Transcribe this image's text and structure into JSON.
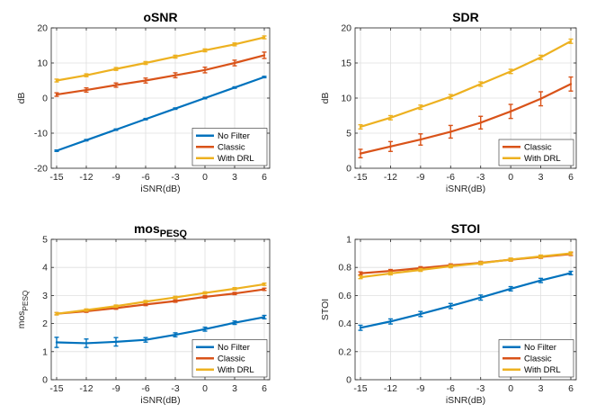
{
  "chart_data": [
    {
      "type": "line",
      "title": "oSNR",
      "title_sub": "",
      "xlabel": "iSNR(dB)",
      "ylabel": "dB",
      "ylabel_sub": "",
      "ylim": [
        -20,
        20
      ],
      "yticks": [
        "-20",
        "-10",
        "0",
        "10",
        "20"
      ],
      "ytick_values": [
        -20,
        -10,
        0,
        10,
        20
      ],
      "x": [
        -15,
        -12,
        -9,
        -6,
        -3,
        0,
        3,
        6
      ],
      "xticks": [
        "-15",
        "-12",
        "-9",
        "-6",
        "-3",
        "0",
        "3",
        "6"
      ],
      "grid": true,
      "legend_position": "bottom-right",
      "series": [
        {
          "name": "No Filter",
          "color": "#0072BD",
          "values": [
            -15,
            -12,
            -9,
            -6,
            -3,
            0,
            3,
            6
          ],
          "errors": [
            0.2,
            0.2,
            0.2,
            0.2,
            0.2,
            0.2,
            0.2,
            0.2
          ]
        },
        {
          "name": "Classic",
          "color": "#D95319",
          "values": [
            1,
            2.3,
            3.7,
            5,
            6.5,
            8,
            10,
            12.2
          ],
          "errors": [
            0.5,
            0.6,
            0.6,
            0.7,
            0.7,
            0.8,
            0.8,
            0.9
          ]
        },
        {
          "name": "With DRL",
          "color": "#EDB120",
          "values": [
            5,
            6.5,
            8.3,
            10,
            11.8,
            13.6,
            15.3,
            17.3
          ],
          "errors": [
            0.4,
            0.4,
            0.4,
            0.4,
            0.4,
            0.4,
            0.4,
            0.4
          ]
        }
      ]
    },
    {
      "type": "line",
      "title": "SDR",
      "title_sub": "",
      "xlabel": "iSNR(dB)",
      "ylabel": "dB",
      "ylabel_sub": "",
      "ylim": [
        0,
        20
      ],
      "yticks": [
        "0",
        "5",
        "10",
        "15",
        "20"
      ],
      "ytick_values": [
        0,
        5,
        10,
        15,
        20
      ],
      "x": [
        -15,
        -12,
        -9,
        -6,
        -3,
        0,
        3,
        6
      ],
      "xticks": [
        "-15",
        "-12",
        "-9",
        "-6",
        "-3",
        "0",
        "3",
        "6"
      ],
      "grid": true,
      "legend_position": "bottom-right",
      "series": [
        {
          "name": "Classic",
          "color": "#D95319",
          "values": [
            2.1,
            3.1,
            4.1,
            5.2,
            6.5,
            8.1,
            9.9,
            12
          ],
          "errors": [
            0.6,
            0.7,
            0.8,
            0.9,
            0.9,
            1,
            1,
            1
          ]
        },
        {
          "name": "With DRL",
          "color": "#EDB120",
          "values": [
            5.9,
            7.2,
            8.7,
            10.2,
            12,
            13.8,
            15.8,
            18.1
          ],
          "errors": [
            0.3,
            0.3,
            0.3,
            0.3,
            0.3,
            0.3,
            0.3,
            0.3
          ]
        }
      ]
    },
    {
      "type": "line",
      "title": "mos",
      "title_sub": "PESQ",
      "xlabel": "iSNR(dB)",
      "ylabel": "mos",
      "ylabel_sub": "PESQ",
      "ylim": [
        0,
        5
      ],
      "yticks": [
        "0",
        "1",
        "2",
        "3",
        "4",
        "5"
      ],
      "ytick_values": [
        0,
        1,
        2,
        3,
        4,
        5
      ],
      "x": [
        -15,
        -12,
        -9,
        -6,
        -3,
        0,
        3,
        6
      ],
      "xticks": [
        "-15",
        "-12",
        "-9",
        "-6",
        "-3",
        "0",
        "3",
        "6"
      ],
      "grid": true,
      "legend_position": "bottom-right",
      "series": [
        {
          "name": "No Filter",
          "color": "#0072BD",
          "values": [
            1.33,
            1.3,
            1.35,
            1.42,
            1.6,
            1.8,
            2.03,
            2.23
          ],
          "errors": [
            0.18,
            0.15,
            0.15,
            0.08,
            0.07,
            0.07,
            0.06,
            0.06
          ]
        },
        {
          "name": "Classic",
          "color": "#D95319",
          "values": [
            2.35,
            2.44,
            2.55,
            2.68,
            2.8,
            2.95,
            3.07,
            3.22
          ],
          "errors": [
            0.04,
            0.04,
            0.04,
            0.04,
            0.04,
            0.04,
            0.04,
            0.04
          ]
        },
        {
          "name": "With DRL",
          "color": "#EDB120",
          "values": [
            2.35,
            2.48,
            2.62,
            2.78,
            2.93,
            3.09,
            3.24,
            3.4
          ],
          "errors": [
            0.04,
            0.04,
            0.04,
            0.04,
            0.04,
            0.04,
            0.04,
            0.04
          ]
        }
      ]
    },
    {
      "type": "line",
      "title": "STOI",
      "title_sub": "",
      "xlabel": "iSNR(dB)",
      "ylabel": "STOI",
      "ylabel_sub": "",
      "ylim": [
        0,
        1
      ],
      "yticks": [
        "0",
        "0.2",
        "0.4",
        "0.6",
        "0.8",
        "1"
      ],
      "ytick_values": [
        0,
        0.2,
        0.4,
        0.6,
        0.8,
        1
      ],
      "x": [
        -15,
        -12,
        -9,
        -6,
        -3,
        0,
        3,
        6
      ],
      "xticks": [
        "-15",
        "-12",
        "-9",
        "-6",
        "-3",
        "0",
        "3",
        "6"
      ],
      "grid": true,
      "legend_position": "bottom-right",
      "series": [
        {
          "name": "No Filter",
          "color": "#0072BD",
          "values": [
            0.37,
            0.415,
            0.468,
            0.525,
            0.585,
            0.648,
            0.707,
            0.76
          ],
          "errors": [
            0.018,
            0.018,
            0.018,
            0.018,
            0.018,
            0.015,
            0.015,
            0.012
          ]
        },
        {
          "name": "Classic",
          "color": "#D95319",
          "values": [
            0.758,
            0.775,
            0.795,
            0.815,
            0.833,
            0.855,
            0.875,
            0.895
          ],
          "errors": [
            0.01,
            0.01,
            0.01,
            0.01,
            0.01,
            0.01,
            0.01,
            0.01
          ]
        },
        {
          "name": "With DRL",
          "color": "#EDB120",
          "values": [
            0.73,
            0.757,
            0.782,
            0.808,
            0.83,
            0.856,
            0.878,
            0.9
          ],
          "errors": [
            0.01,
            0.01,
            0.01,
            0.01,
            0.01,
            0.01,
            0.01,
            0.01
          ]
        }
      ]
    }
  ]
}
